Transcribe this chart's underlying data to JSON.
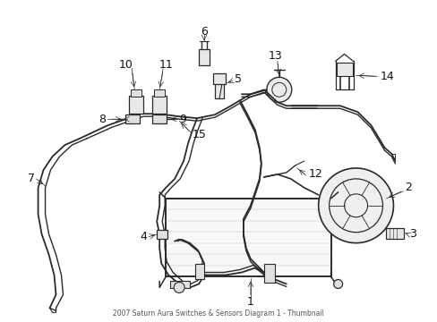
{
  "bg_color": "#ffffff",
  "line_color": "#2a2a2a",
  "label_color": "#111111",
  "fig_width": 4.89,
  "fig_height": 3.6,
  "dpi": 100
}
